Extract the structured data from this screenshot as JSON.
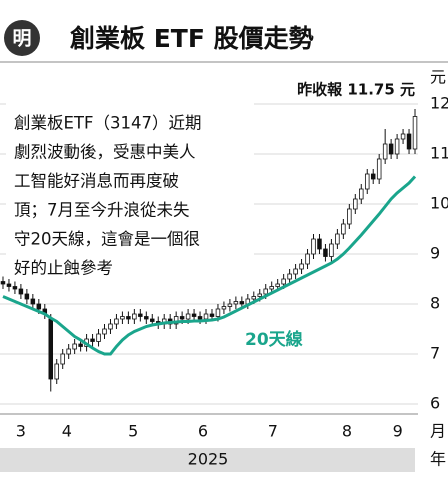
{
  "chart_data": {
    "type": "candlestick",
    "icon_text": "明",
    "title": "創業板 ETF 股價走勢",
    "annotation": "昨收報 11.75 元",
    "body_text": [
      "創業板ETF（3147）近期",
      "劇烈波動後，受惠中美人",
      "工智能好消息而再度破",
      "頂；7月至今升浪從未失",
      "守20天線，這會是一個很",
      "好的止蝕參考"
    ],
    "y_unit": "元",
    "x_unit": "月",
    "year_label": "2025",
    "year_unit": "年",
    "ylim": [
      5.8,
      12.8
    ],
    "yticks": [
      6,
      7,
      8,
      9,
      10,
      11,
      12
    ],
    "xlim": [
      -0.5,
      69.5
    ],
    "xticks": [
      {
        "value": 3,
        "label": "3"
      },
      {
        "value": 10.7,
        "label": "4"
      },
      {
        "value": 21.8,
        "label": "5"
      },
      {
        "value": 33.5,
        "label": "6"
      },
      {
        "value": 45.2,
        "label": "7"
      },
      {
        "value": 57.6,
        "label": "8"
      },
      {
        "value": 66.1,
        "label": "9"
      }
    ],
    "grid": true,
    "up_color": "#ffffff",
    "down_color": "#111111",
    "candles": {
      "open": [
        8.45,
        8.4,
        8.35,
        8.3,
        8.2,
        8.1,
        8.0,
        7.9,
        7.7,
        6.5,
        6.8,
        7.0,
        7.1,
        7.2,
        7.15,
        7.3,
        7.25,
        7.4,
        7.5,
        7.6,
        7.7,
        7.75,
        7.7,
        7.8,
        7.75,
        7.7,
        7.65,
        7.6,
        7.7,
        7.6,
        7.75,
        7.7,
        7.8,
        7.75,
        7.7,
        7.8,
        7.75,
        7.9,
        7.95,
        8.0,
        8.05,
        8.0,
        8.1,
        8.15,
        8.2,
        8.3,
        8.35,
        8.4,
        8.5,
        8.6,
        8.7,
        8.8,
        9.0,
        9.3,
        9.1,
        8.95,
        9.2,
        9.4,
        9.6,
        9.9,
        10.1,
        10.3,
        10.6,
        10.5,
        10.9,
        11.2,
        11.0,
        11.3,
        11.4,
        11.1
      ],
      "high": [
        8.55,
        8.5,
        8.45,
        8.4,
        8.3,
        8.2,
        8.1,
        8.0,
        7.8,
        6.9,
        7.1,
        7.2,
        7.3,
        7.3,
        7.4,
        7.4,
        7.5,
        7.6,
        7.7,
        7.8,
        7.85,
        7.85,
        7.9,
        7.9,
        7.85,
        7.8,
        7.75,
        7.8,
        7.8,
        7.85,
        7.85,
        7.9,
        7.9,
        7.85,
        7.9,
        7.9,
        8.0,
        8.05,
        8.1,
        8.15,
        8.15,
        8.2,
        8.25,
        8.3,
        8.4,
        8.45,
        8.5,
        8.6,
        8.7,
        8.8,
        8.9,
        9.1,
        9.4,
        9.4,
        9.2,
        9.3,
        9.5,
        9.7,
        10.0,
        10.2,
        10.4,
        10.7,
        10.7,
        11.0,
        11.5,
        11.3,
        11.4,
        11.5,
        11.5,
        11.9
      ],
      "low": [
        8.3,
        8.25,
        8.2,
        8.1,
        8.0,
        7.9,
        7.8,
        7.7,
        6.25,
        6.4,
        6.7,
        6.9,
        7.0,
        7.05,
        7.05,
        7.15,
        7.15,
        7.3,
        7.4,
        7.5,
        7.6,
        7.6,
        7.6,
        7.65,
        7.6,
        7.55,
        7.5,
        7.5,
        7.5,
        7.5,
        7.6,
        7.6,
        7.65,
        7.6,
        7.6,
        7.65,
        7.65,
        7.8,
        7.85,
        7.9,
        7.9,
        7.9,
        8.0,
        8.05,
        8.1,
        8.2,
        8.25,
        8.3,
        8.4,
        8.5,
        8.6,
        8.7,
        8.9,
        9.0,
        8.85,
        8.85,
        9.1,
        9.3,
        9.5,
        9.8,
        10.0,
        10.2,
        10.4,
        10.4,
        10.8,
        10.9,
        10.9,
        11.2,
        11.0,
        11.0
      ],
      "close": [
        8.4,
        8.35,
        8.3,
        8.2,
        8.1,
        8.0,
        7.9,
        7.8,
        6.5,
        6.8,
        7.0,
        7.1,
        7.2,
        7.15,
        7.3,
        7.25,
        7.4,
        7.5,
        7.6,
        7.7,
        7.75,
        7.7,
        7.8,
        7.75,
        7.7,
        7.65,
        7.6,
        7.7,
        7.6,
        7.75,
        7.7,
        7.8,
        7.75,
        7.7,
        7.8,
        7.75,
        7.9,
        7.95,
        8.0,
        8.05,
        8.0,
        8.1,
        8.15,
        8.2,
        8.3,
        8.35,
        8.4,
        8.5,
        8.6,
        8.7,
        8.8,
        9.0,
        9.3,
        9.1,
        8.95,
        9.2,
        9.4,
        9.6,
        9.9,
        10.1,
        10.3,
        10.6,
        10.5,
        10.9,
        11.2,
        11.0,
        11.3,
        11.4,
        11.1,
        11.75
      ]
    },
    "ma": {
      "name": "20天線",
      "color": "#1aa58c",
      "values": [
        8.15,
        8.1,
        8.05,
        8.0,
        7.95,
        7.9,
        7.85,
        7.8,
        7.72,
        7.65,
        7.55,
        7.45,
        7.35,
        7.28,
        7.2,
        7.12,
        7.05,
        7.0,
        7.0,
        7.15,
        7.28,
        7.38,
        7.45,
        7.5,
        7.55,
        7.58,
        7.6,
        7.62,
        7.63,
        7.64,
        7.65,
        7.65,
        7.66,
        7.66,
        7.67,
        7.68,
        7.7,
        7.74,
        7.8,
        7.86,
        7.92,
        7.98,
        8.04,
        8.1,
        8.16,
        8.22,
        8.28,
        8.34,
        8.4,
        8.46,
        8.52,
        8.58,
        8.64,
        8.7,
        8.76,
        8.82,
        8.9,
        9.0,
        9.12,
        9.25,
        9.38,
        9.52,
        9.66,
        9.8,
        9.95,
        10.1,
        10.22,
        10.32,
        10.42,
        10.55
      ]
    }
  }
}
